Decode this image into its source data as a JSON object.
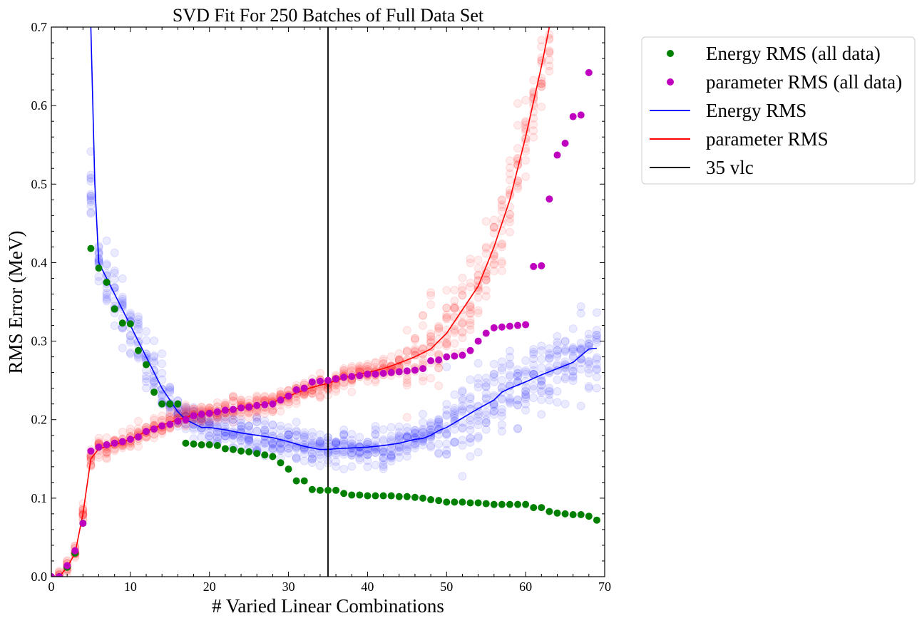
{
  "chart_data": {
    "type": "scatter",
    "title": "SVD Fit For 250 Batches of Full Data Set",
    "xlabel": "# Varied Linear Combinations",
    "ylabel": "RMS Error (MeV)",
    "xlim": [
      0,
      70
    ],
    "ylim": [
      0,
      0.7
    ],
    "xticks": [
      0,
      10,
      20,
      30,
      40,
      50,
      60,
      70
    ],
    "yticks": [
      0.0,
      0.1,
      0.2,
      0.3,
      0.4,
      0.5,
      0.6,
      0.7
    ],
    "xtick_labels": [
      "0",
      "10",
      "20",
      "30",
      "40",
      "50",
      "60",
      "70"
    ],
    "ytick_labels": [
      "0.0",
      "0.1",
      "0.2",
      "0.3",
      "0.4",
      "0.5",
      "0.6",
      "0.7"
    ],
    "grid": false,
    "legend_position": "outside-top-right",
    "vertical_line": {
      "x": 35,
      "name": "35 vlc",
      "color": "#000000"
    },
    "legend": [
      {
        "label": "Energy RMS (all data)",
        "kind": "marker",
        "color": "#008000"
      },
      {
        "label": "parameter RMS (all data)",
        "kind": "marker",
        "color": "#bf00bf"
      },
      {
        "label": "Energy RMS",
        "kind": "line",
        "color": "#0000ff"
      },
      {
        "label": "parameter RMS",
        "kind": "line",
        "color": "#ff0000"
      },
      {
        "label": "35 vlc",
        "kind": "line",
        "color": "#000000"
      }
    ],
    "series": [
      {
        "name": "Energy RMS (all data)",
        "kind": "scatter",
        "color": "#008000",
        "x": [
          0,
          1,
          2,
          3,
          4,
          5,
          6,
          7,
          8,
          9,
          10,
          11,
          12,
          13,
          14,
          15,
          16,
          17,
          18,
          19,
          20,
          21,
          22,
          23,
          24,
          25,
          26,
          27,
          28,
          29,
          30,
          31,
          32,
          33,
          34,
          35,
          36,
          37,
          38,
          39,
          40,
          41,
          42,
          43,
          44,
          45,
          46,
          47,
          48,
          49,
          50,
          51,
          52,
          53,
          54,
          55,
          56,
          57,
          58,
          59,
          60,
          61,
          62,
          63,
          64,
          65,
          66,
          67,
          68,
          69
        ],
        "y": [
          0,
          0,
          0.012,
          0.03,
          0.068,
          0.418,
          0.393,
          0.375,
          0.341,
          0.323,
          0.322,
          0.288,
          0.27,
          0.235,
          0.22,
          0.22,
          0.22,
          0.17,
          0.169,
          0.168,
          0.168,
          0.167,
          0.163,
          0.162,
          0.16,
          0.159,
          0.157,
          0.155,
          0.153,
          0.145,
          0.137,
          0.122,
          0.122,
          0.111,
          0.11,
          0.11,
          0.11,
          0.106,
          0.104,
          0.104,
          0.103,
          0.103,
          0.103,
          0.103,
          0.102,
          0.102,
          0.101,
          0.1,
          0.098,
          0.097,
          0.095,
          0.095,
          0.095,
          0.094,
          0.094,
          0.093,
          0.092,
          0.092,
          0.092,
          0.092,
          0.092,
          0.088,
          0.088,
          0.083,
          0.081,
          0.08,
          0.079,
          0.079,
          0.077,
          0.072
        ]
      },
      {
        "name": "parameter RMS (all data)",
        "kind": "scatter",
        "color": "#bf00bf",
        "x": [
          0,
          1,
          2,
          3,
          4,
          5,
          6,
          7,
          8,
          9,
          10,
          11,
          12,
          13,
          14,
          15,
          16,
          17,
          18,
          19,
          20,
          21,
          22,
          23,
          24,
          25,
          26,
          27,
          28,
          29,
          30,
          31,
          32,
          33,
          34,
          35,
          36,
          37,
          38,
          39,
          40,
          41,
          42,
          43,
          44,
          45,
          46,
          47,
          48,
          49,
          50,
          51,
          52,
          53,
          54,
          55,
          56,
          57,
          58,
          59,
          60,
          61,
          62,
          63,
          64,
          65,
          66,
          67,
          68
        ],
        "y": [
          0,
          0,
          0.014,
          0.033,
          0.068,
          0.16,
          0.165,
          0.168,
          0.17,
          0.172,
          0.175,
          0.178,
          0.185,
          0.188,
          0.192,
          0.194,
          0.198,
          0.2,
          0.205,
          0.207,
          0.208,
          0.21,
          0.212,
          0.213,
          0.215,
          0.216,
          0.218,
          0.219,
          0.22,
          0.225,
          0.23,
          0.238,
          0.24,
          0.248,
          0.249,
          0.25,
          0.252,
          0.254,
          0.255,
          0.256,
          0.258,
          0.258,
          0.259,
          0.26,
          0.261,
          0.262,
          0.263,
          0.265,
          0.275,
          0.276,
          0.28,
          0.281,
          0.282,
          0.288,
          0.3,
          0.31,
          0.317,
          0.318,
          0.319,
          0.32,
          0.321,
          0.395,
          0.396,
          0.481,
          0.537,
          0.552,
          0.586,
          0.588,
          0.642
        ]
      },
      {
        "name": "Energy RMS",
        "kind": "line",
        "color": "#0000ff",
        "x": [
          5,
          5.5,
          6,
          7,
          8,
          9,
          10,
          11,
          12,
          13,
          14,
          15,
          16,
          17,
          18,
          19,
          20,
          22,
          24,
          26,
          28,
          30,
          32,
          34,
          35,
          36,
          38,
          40,
          42,
          44,
          46,
          47,
          48,
          49,
          50,
          52,
          54,
          56,
          57,
          58,
          60,
          62,
          64,
          66,
          68,
          69
        ],
        "y": [
          0.7,
          0.5,
          0.4,
          0.38,
          0.36,
          0.34,
          0.32,
          0.3,
          0.28,
          0.26,
          0.24,
          0.225,
          0.21,
          0.2,
          0.195,
          0.19,
          0.19,
          0.187,
          0.183,
          0.18,
          0.177,
          0.172,
          0.166,
          0.162,
          0.162,
          0.163,
          0.164,
          0.165,
          0.167,
          0.17,
          0.175,
          0.176,
          0.18,
          0.186,
          0.19,
          0.202,
          0.214,
          0.225,
          0.235,
          0.24,
          0.248,
          0.257,
          0.265,
          0.273,
          0.29,
          0.291
        ]
      },
      {
        "name": "parameter RMS",
        "kind": "line",
        "color": "#ff0000",
        "x": [
          0,
          1,
          2,
          3,
          4,
          5,
          6,
          8,
          10,
          12,
          14,
          16,
          18,
          20,
          22,
          24,
          26,
          28,
          30,
          32,
          34,
          35,
          36,
          38,
          40,
          42,
          44,
          46,
          48,
          50,
          52,
          54,
          56,
          58,
          60,
          62,
          63
        ],
        "y": [
          0,
          0,
          0.012,
          0.03,
          0.08,
          0.15,
          0.163,
          0.168,
          0.175,
          0.185,
          0.193,
          0.2,
          0.206,
          0.208,
          0.212,
          0.215,
          0.218,
          0.222,
          0.23,
          0.238,
          0.244,
          0.246,
          0.25,
          0.256,
          0.26,
          0.265,
          0.272,
          0.28,
          0.29,
          0.31,
          0.34,
          0.37,
          0.42,
          0.48,
          0.56,
          0.65,
          0.7
        ]
      }
    ]
  }
}
